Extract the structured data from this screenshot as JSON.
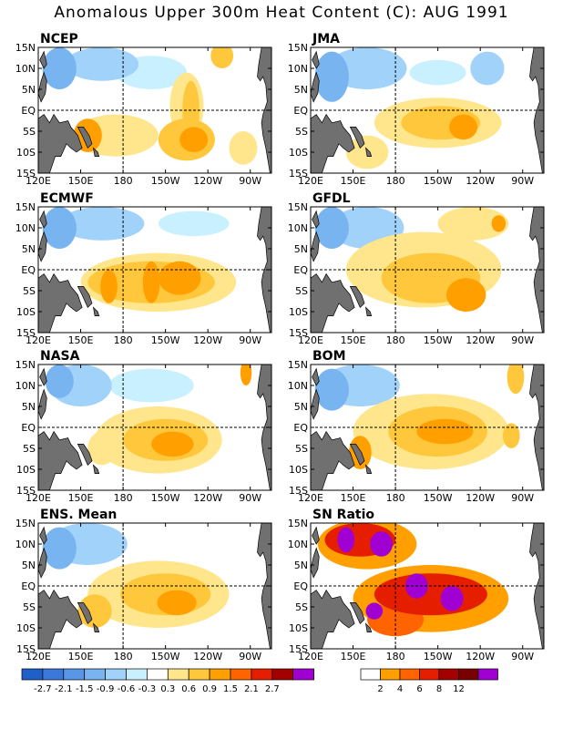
{
  "title": "Anomalous Upper 300m Heat Content (C): AUG 1991",
  "panels": [
    {
      "label": "NCEP",
      "palette": "anom",
      "blobs": [
        {
          "lon": 165,
          "lat": 11,
          "rx": 26,
          "ry": 4,
          "level": -2
        },
        {
          "lon": 135,
          "lat": 10,
          "rx": 12,
          "ry": 5,
          "level": -3
        },
        {
          "lon": 200,
          "lat": 9,
          "rx": 25,
          "ry": 4,
          "level": -1
        },
        {
          "lon": 250,
          "lat": 13,
          "rx": 8,
          "ry": 3,
          "level": 2
        },
        {
          "lon": 225,
          "lat": 1,
          "rx": 12,
          "ry": 8,
          "level": 1
        },
        {
          "lon": 228,
          "lat": 0,
          "rx": 6,
          "ry": 7,
          "level": 2
        },
        {
          "lon": 175,
          "lat": -6,
          "rx": 30,
          "ry": 5,
          "level": 1
        },
        {
          "lon": 155,
          "lat": -6,
          "rx": 10,
          "ry": 4,
          "level": 3
        },
        {
          "lon": 225,
          "lat": -7,
          "rx": 20,
          "ry": 5,
          "level": 2
        },
        {
          "lon": 230,
          "lat": -7,
          "rx": 10,
          "ry": 3,
          "level": 3
        },
        {
          "lon": 265,
          "lat": -9,
          "rx": 10,
          "ry": 4,
          "level": 1
        }
      ]
    },
    {
      "label": "JMA",
      "palette": "anom",
      "blobs": [
        {
          "lon": 160,
          "lat": 10,
          "rx": 28,
          "ry": 5,
          "level": -2
        },
        {
          "lon": 135,
          "lat": 8,
          "rx": 12,
          "ry": 6,
          "level": -3
        },
        {
          "lon": 245,
          "lat": 10,
          "rx": 12,
          "ry": 4,
          "level": -2
        },
        {
          "lon": 210,
          "lat": 9,
          "rx": 20,
          "ry": 3,
          "level": -1
        },
        {
          "lon": 210,
          "lat": -3,
          "rx": 45,
          "ry": 6,
          "level": 1
        },
        {
          "lon": 212,
          "lat": -3,
          "rx": 28,
          "ry": 4,
          "level": 2
        },
        {
          "lon": 228,
          "lat": -4,
          "rx": 10,
          "ry": 3,
          "level": 3
        },
        {
          "lon": 160,
          "lat": -10,
          "rx": 15,
          "ry": 4,
          "level": 1
        }
      ]
    },
    {
      "label": "ECMWF",
      "palette": "anom",
      "blobs": [
        {
          "lon": 165,
          "lat": 11,
          "rx": 30,
          "ry": 4,
          "level": -2
        },
        {
          "lon": 135,
          "lat": 10,
          "rx": 12,
          "ry": 5,
          "level": -3
        },
        {
          "lon": 230,
          "lat": 11,
          "rx": 25,
          "ry": 3,
          "level": -1
        },
        {
          "lon": 205,
          "lat": -3,
          "rx": 55,
          "ry": 7,
          "level": 1
        },
        {
          "lon": 200,
          "lat": -3,
          "rx": 45,
          "ry": 5,
          "level": 2
        },
        {
          "lon": 220,
          "lat": -2,
          "rx": 15,
          "ry": 4,
          "level": 3
        },
        {
          "lon": 200,
          "lat": -3,
          "rx": 6,
          "ry": 5,
          "level": 3
        },
        {
          "lon": 170,
          "lat": -4,
          "rx": 6,
          "ry": 4,
          "level": 3
        }
      ]
    },
    {
      "label": "GFDL",
      "palette": "anom",
      "blobs": [
        {
          "lon": 160,
          "lat": 10,
          "rx": 26,
          "ry": 5,
          "level": -2
        },
        {
          "lon": 135,
          "lat": 10,
          "rx": 12,
          "ry": 5,
          "level": -3
        },
        {
          "lon": 200,
          "lat": 0,
          "rx": 55,
          "ry": 9,
          "level": 1
        },
        {
          "lon": 205,
          "lat": -2,
          "rx": 35,
          "ry": 6,
          "level": 2
        },
        {
          "lon": 230,
          "lat": -6,
          "rx": 14,
          "ry": 4,
          "level": 3
        },
        {
          "lon": 253,
          "lat": 11,
          "rx": 5,
          "ry": 2,
          "level": 3
        },
        {
          "lon": 235,
          "lat": 11,
          "rx": 25,
          "ry": 4,
          "level": 1
        }
      ]
    },
    {
      "label": "NASA",
      "palette": "anom",
      "blobs": [
        {
          "lon": 150,
          "lat": 10,
          "rx": 22,
          "ry": 5,
          "level": -2
        },
        {
          "lon": 135,
          "lat": 11,
          "rx": 10,
          "ry": 4,
          "level": -3
        },
        {
          "lon": 200,
          "lat": 10,
          "rx": 30,
          "ry": 4,
          "level": -1
        },
        {
          "lon": 205,
          "lat": -3,
          "rx": 45,
          "ry": 8,
          "level": 1
        },
        {
          "lon": 210,
          "lat": -3,
          "rx": 30,
          "ry": 5,
          "level": 2
        },
        {
          "lon": 215,
          "lat": -4,
          "rx": 15,
          "ry": 3,
          "level": 3
        },
        {
          "lon": 165,
          "lat": -5,
          "rx": 10,
          "ry": 4,
          "level": 1
        },
        {
          "lon": 267,
          "lat": 13,
          "rx": 4,
          "ry": 3,
          "level": 3
        }
      ]
    },
    {
      "label": "BOM",
      "palette": "anom",
      "blobs": [
        {
          "lon": 155,
          "lat": 10,
          "rx": 28,
          "ry": 5,
          "level": -2
        },
        {
          "lon": 135,
          "lat": 9,
          "rx": 12,
          "ry": 5,
          "level": -3
        },
        {
          "lon": 205,
          "lat": -1,
          "rx": 55,
          "ry": 9,
          "level": 1
        },
        {
          "lon": 210,
          "lat": -1,
          "rx": 35,
          "ry": 6,
          "level": 2
        },
        {
          "lon": 215,
          "lat": -1,
          "rx": 20,
          "ry": 3,
          "level": 3
        },
        {
          "lon": 155,
          "lat": -6,
          "rx": 8,
          "ry": 4,
          "level": 3
        },
        {
          "lon": 265,
          "lat": 12,
          "rx": 6,
          "ry": 4,
          "level": 2
        },
        {
          "lon": 262,
          "lat": -2,
          "rx": 6,
          "ry": 3,
          "level": 2
        }
      ]
    },
    {
      "label": "ENS. Mean",
      "palette": "anom",
      "blobs": [
        {
          "lon": 155,
          "lat": 10,
          "rx": 28,
          "ry": 5,
          "level": -2
        },
        {
          "lon": 135,
          "lat": 9,
          "rx": 12,
          "ry": 5,
          "level": -3
        },
        {
          "lon": 205,
          "lat": -2,
          "rx": 50,
          "ry": 8,
          "level": 1
        },
        {
          "lon": 210,
          "lat": -2,
          "rx": 32,
          "ry": 5,
          "level": 2
        },
        {
          "lon": 218,
          "lat": -4,
          "rx": 14,
          "ry": 3,
          "level": 3
        },
        {
          "lon": 160,
          "lat": -6,
          "rx": 12,
          "ry": 4,
          "level": 2
        }
      ]
    },
    {
      "label": "SN Ratio",
      "palette": "sn",
      "blobs": [
        {
          "lon": 160,
          "lat": 10,
          "rx": 35,
          "ry": 6,
          "level": 1
        },
        {
          "lon": 155,
          "lat": 11,
          "rx": 25,
          "ry": 4,
          "level": 3
        },
        {
          "lon": 145,
          "lat": 11,
          "rx": 6,
          "ry": 3,
          "level": 6
        },
        {
          "lon": 170,
          "lat": 10,
          "rx": 8,
          "ry": 3,
          "level": 6
        },
        {
          "lon": 205,
          "lat": -3,
          "rx": 55,
          "ry": 8,
          "level": 1
        },
        {
          "lon": 205,
          "lat": -2,
          "rx": 40,
          "ry": 5,
          "level": 3
        },
        {
          "lon": 195,
          "lat": 0,
          "rx": 8,
          "ry": 3,
          "level": 6
        },
        {
          "lon": 220,
          "lat": -3,
          "rx": 8,
          "ry": 3,
          "level": 6
        },
        {
          "lon": 180,
          "lat": -8,
          "rx": 20,
          "ry": 4,
          "level": 2
        },
        {
          "lon": 165,
          "lat": -6,
          "rx": 6,
          "ry": 2,
          "level": 6
        }
      ]
    }
  ],
  "lon_ticks": [
    {
      "lon": 120,
      "label": "120E"
    },
    {
      "lon": 150,
      "label": "150E"
    },
    {
      "lon": 180,
      "label": "180"
    },
    {
      "lon": 210,
      "label": "150W"
    },
    {
      "lon": 240,
      "label": "120W"
    },
    {
      "lon": 270,
      "label": "90W"
    }
  ],
  "lat_ticks": [
    {
      "lat": 15,
      "label": "15N"
    },
    {
      "lat": 10,
      "label": "10N"
    },
    {
      "lat": 5,
      "label": "5N"
    },
    {
      "lat": 0,
      "label": "EQ"
    },
    {
      "lat": -5,
      "label": "5S"
    },
    {
      "lat": -10,
      "label": "10S"
    },
    {
      "lat": -15,
      "label": "15S"
    }
  ],
  "colorbar_anom": {
    "colors": [
      "#1e60c8",
      "#3c78dc",
      "#5a96e6",
      "#78b4f0",
      "#a0d2fa",
      "#c8f0ff",
      "#ffffff",
      "#ffe68c",
      "#ffc83c",
      "#ffa000",
      "#ff6400",
      "#e61e00",
      "#a50000",
      "#a000d2"
    ],
    "labels": [
      "-2.7",
      "-2.1",
      "-1.5",
      "-0.9",
      "-0.6",
      "-0.3",
      "0.3",
      "0.6",
      "0.9",
      "1.5",
      "2.1",
      "2.7"
    ]
  },
  "colorbar_sn": {
    "colors": [
      "#ffffff",
      "#ffa000",
      "#ff6400",
      "#e61e00",
      "#a50000",
      "#780000",
      "#a000d2"
    ],
    "labels": [
      "2",
      "4",
      "6",
      "8",
      "12"
    ]
  }
}
